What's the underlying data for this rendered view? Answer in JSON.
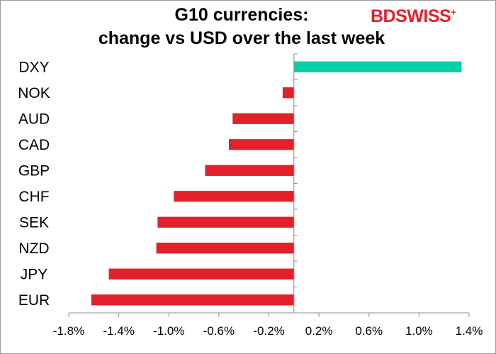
{
  "chart_data": {
    "type": "bar",
    "orientation": "horizontal",
    "title_lines": [
      "G10 currencies:",
      "change vs USD over the last week"
    ],
    "categories": [
      "DXY",
      "NOK",
      "AUD",
      "CAD",
      "GBP",
      "CHF",
      "SEK",
      "NZD",
      "JPY",
      "EUR"
    ],
    "values": [
      1.34,
      -0.09,
      -0.49,
      -0.52,
      -0.71,
      -0.96,
      -1.09,
      -1.1,
      -1.48,
      -1.62
    ],
    "xlim": [
      -1.8,
      1.4
    ],
    "x_ticks": [
      -1.8,
      -1.4,
      -1.0,
      -0.6,
      -0.2,
      0.2,
      0.6,
      1.0,
      1.4
    ],
    "x_tick_labels": [
      "-1.8%",
      "-1.4%",
      "-1.0%",
      "-0.6%",
      "-0.2%",
      "0.2%",
      "0.6%",
      "1.0%",
      "1.4%"
    ],
    "colors": {
      "positive": "#00d1a8",
      "negative": "#e4202b"
    },
    "grid": false,
    "legend": "none"
  },
  "logo": {
    "text_primary": "BD",
    "text_secondary": "SWISS",
    "mark": "+"
  }
}
